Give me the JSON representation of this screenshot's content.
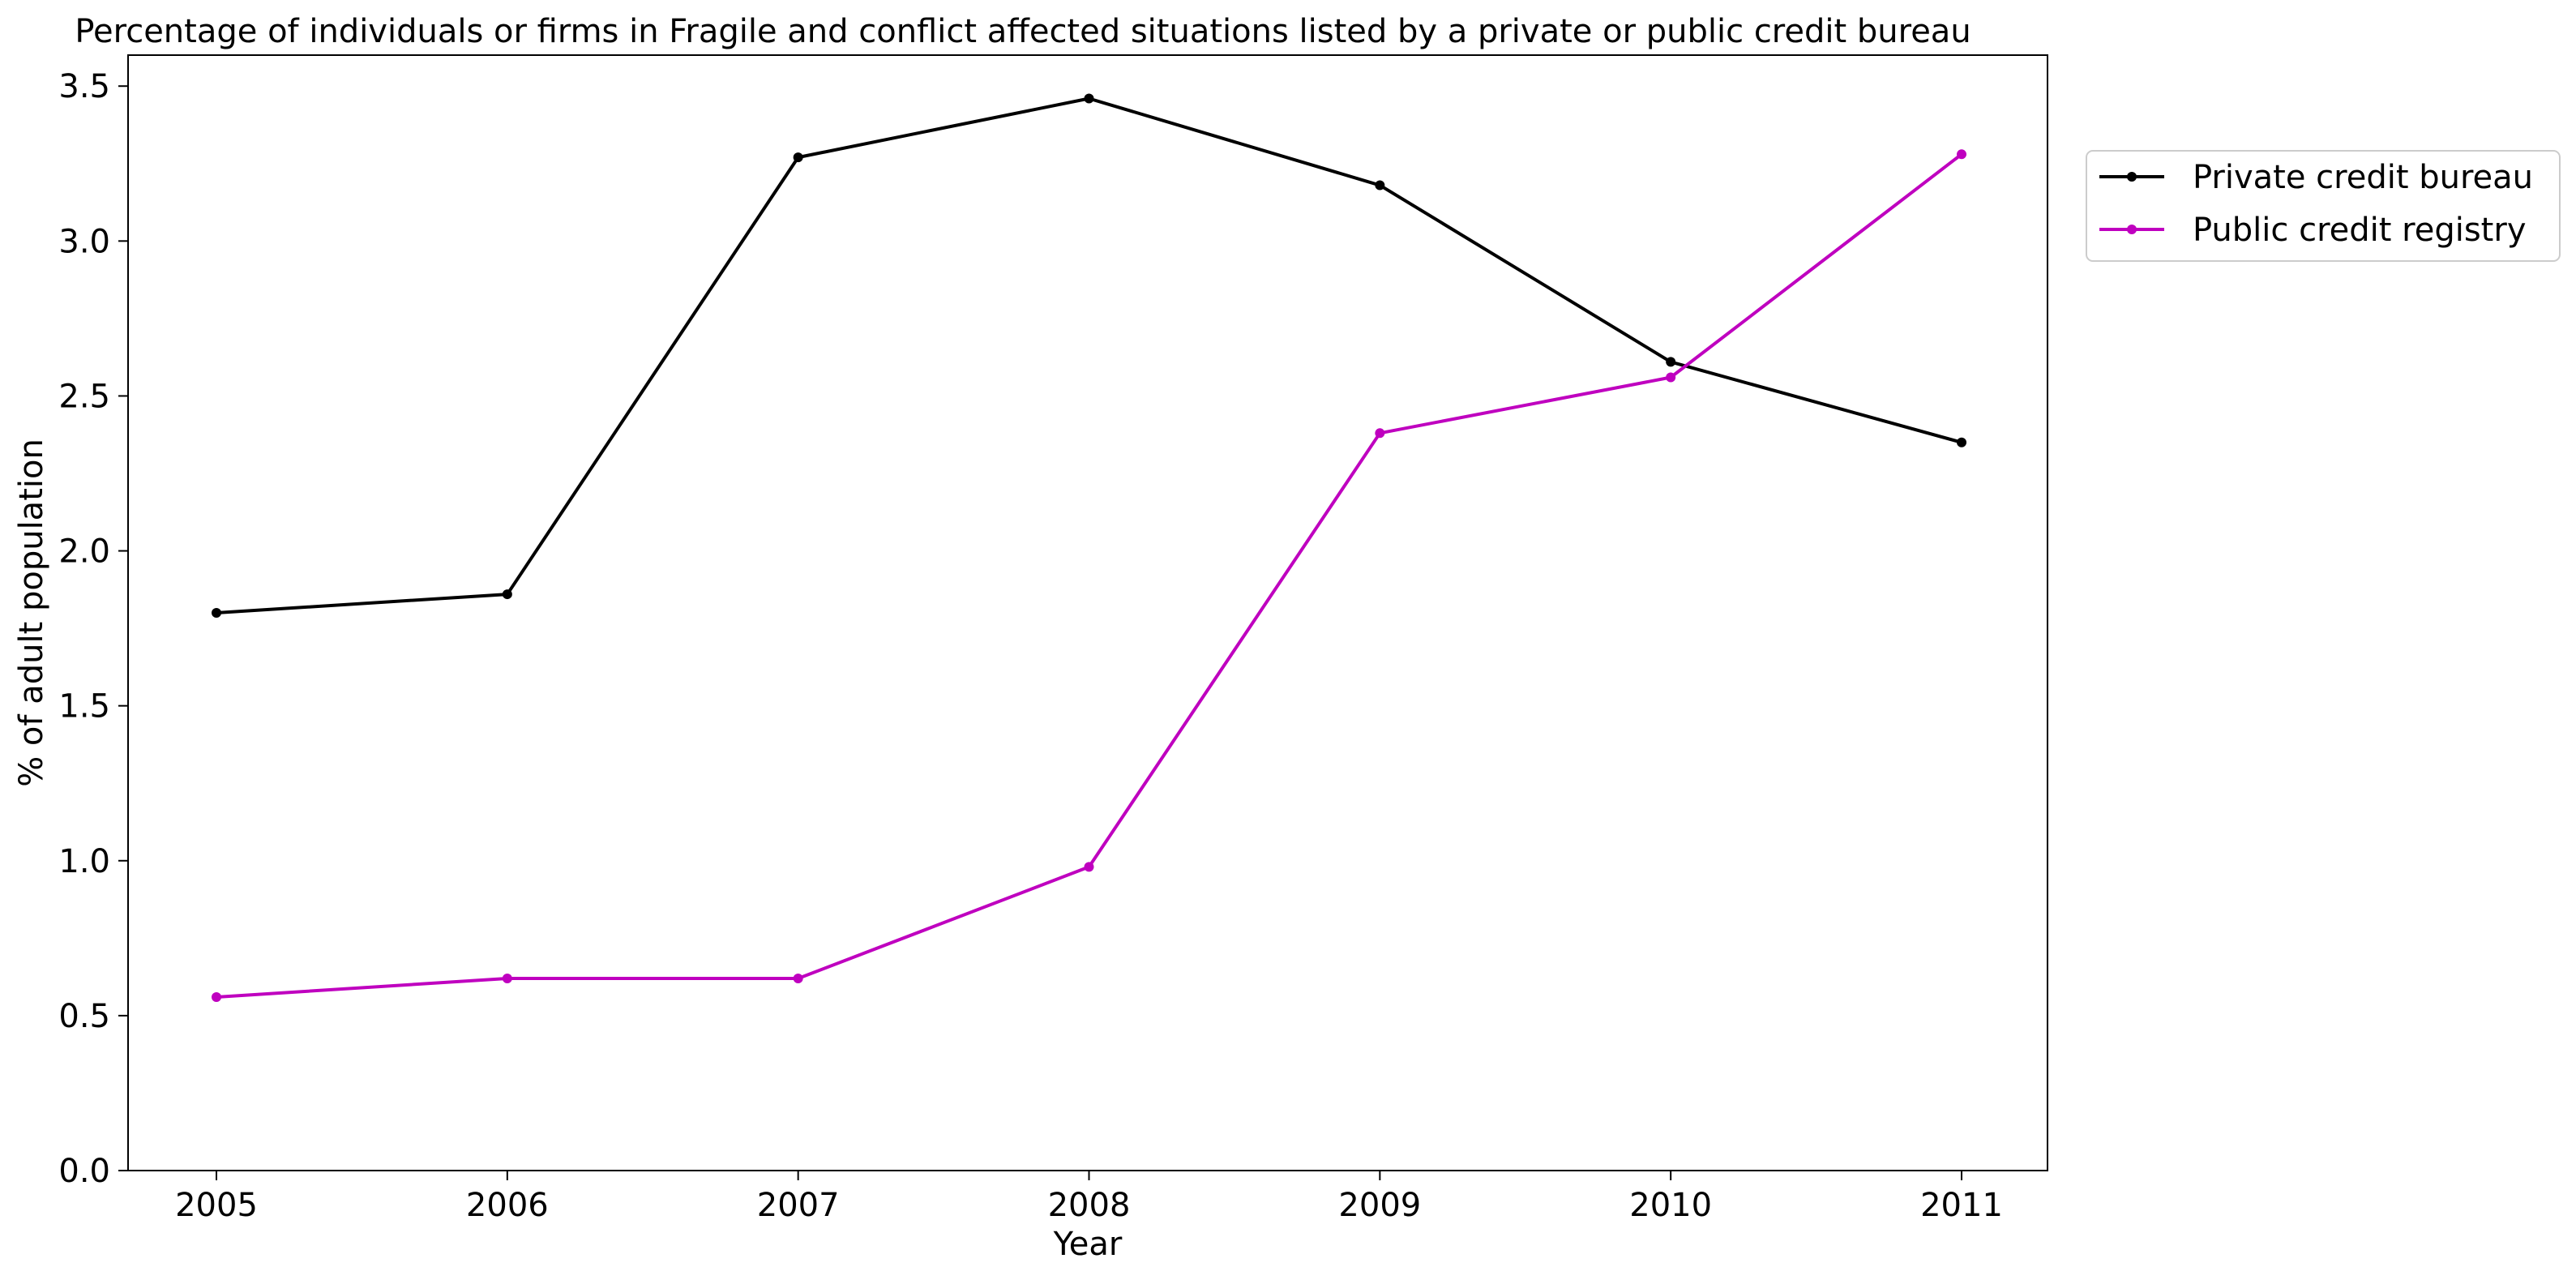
{
  "chart_data": {
    "type": "line",
    "title": "Percentage of individuals or firms in Fragile and conflict affected situations listed by a private or public credit bureau",
    "xlabel": "Year",
    "ylabel": "% of adult population",
    "categories": [
      "2005",
      "2006",
      "2007",
      "2008",
      "2009",
      "2010",
      "2011"
    ],
    "ylim": [
      0,
      3.6
    ],
    "yticks": [
      "0.0",
      "0.5",
      "1.0",
      "1.5",
      "2.0",
      "2.5",
      "3.0",
      "3.5"
    ],
    "grid": false,
    "legend_position": "outside-top-right",
    "series": [
      {
        "name": "Private credit bureau",
        "color": "#000000",
        "marker": "dot",
        "values": [
          1.8,
          1.86,
          3.27,
          3.46,
          3.18,
          2.61,
          2.35
        ]
      },
      {
        "name": "Public credit registry",
        "color": "#bf00bf",
        "marker": "dot",
        "values": [
          0.56,
          0.62,
          0.62,
          0.98,
          2.38,
          2.56,
          3.28
        ]
      }
    ]
  }
}
